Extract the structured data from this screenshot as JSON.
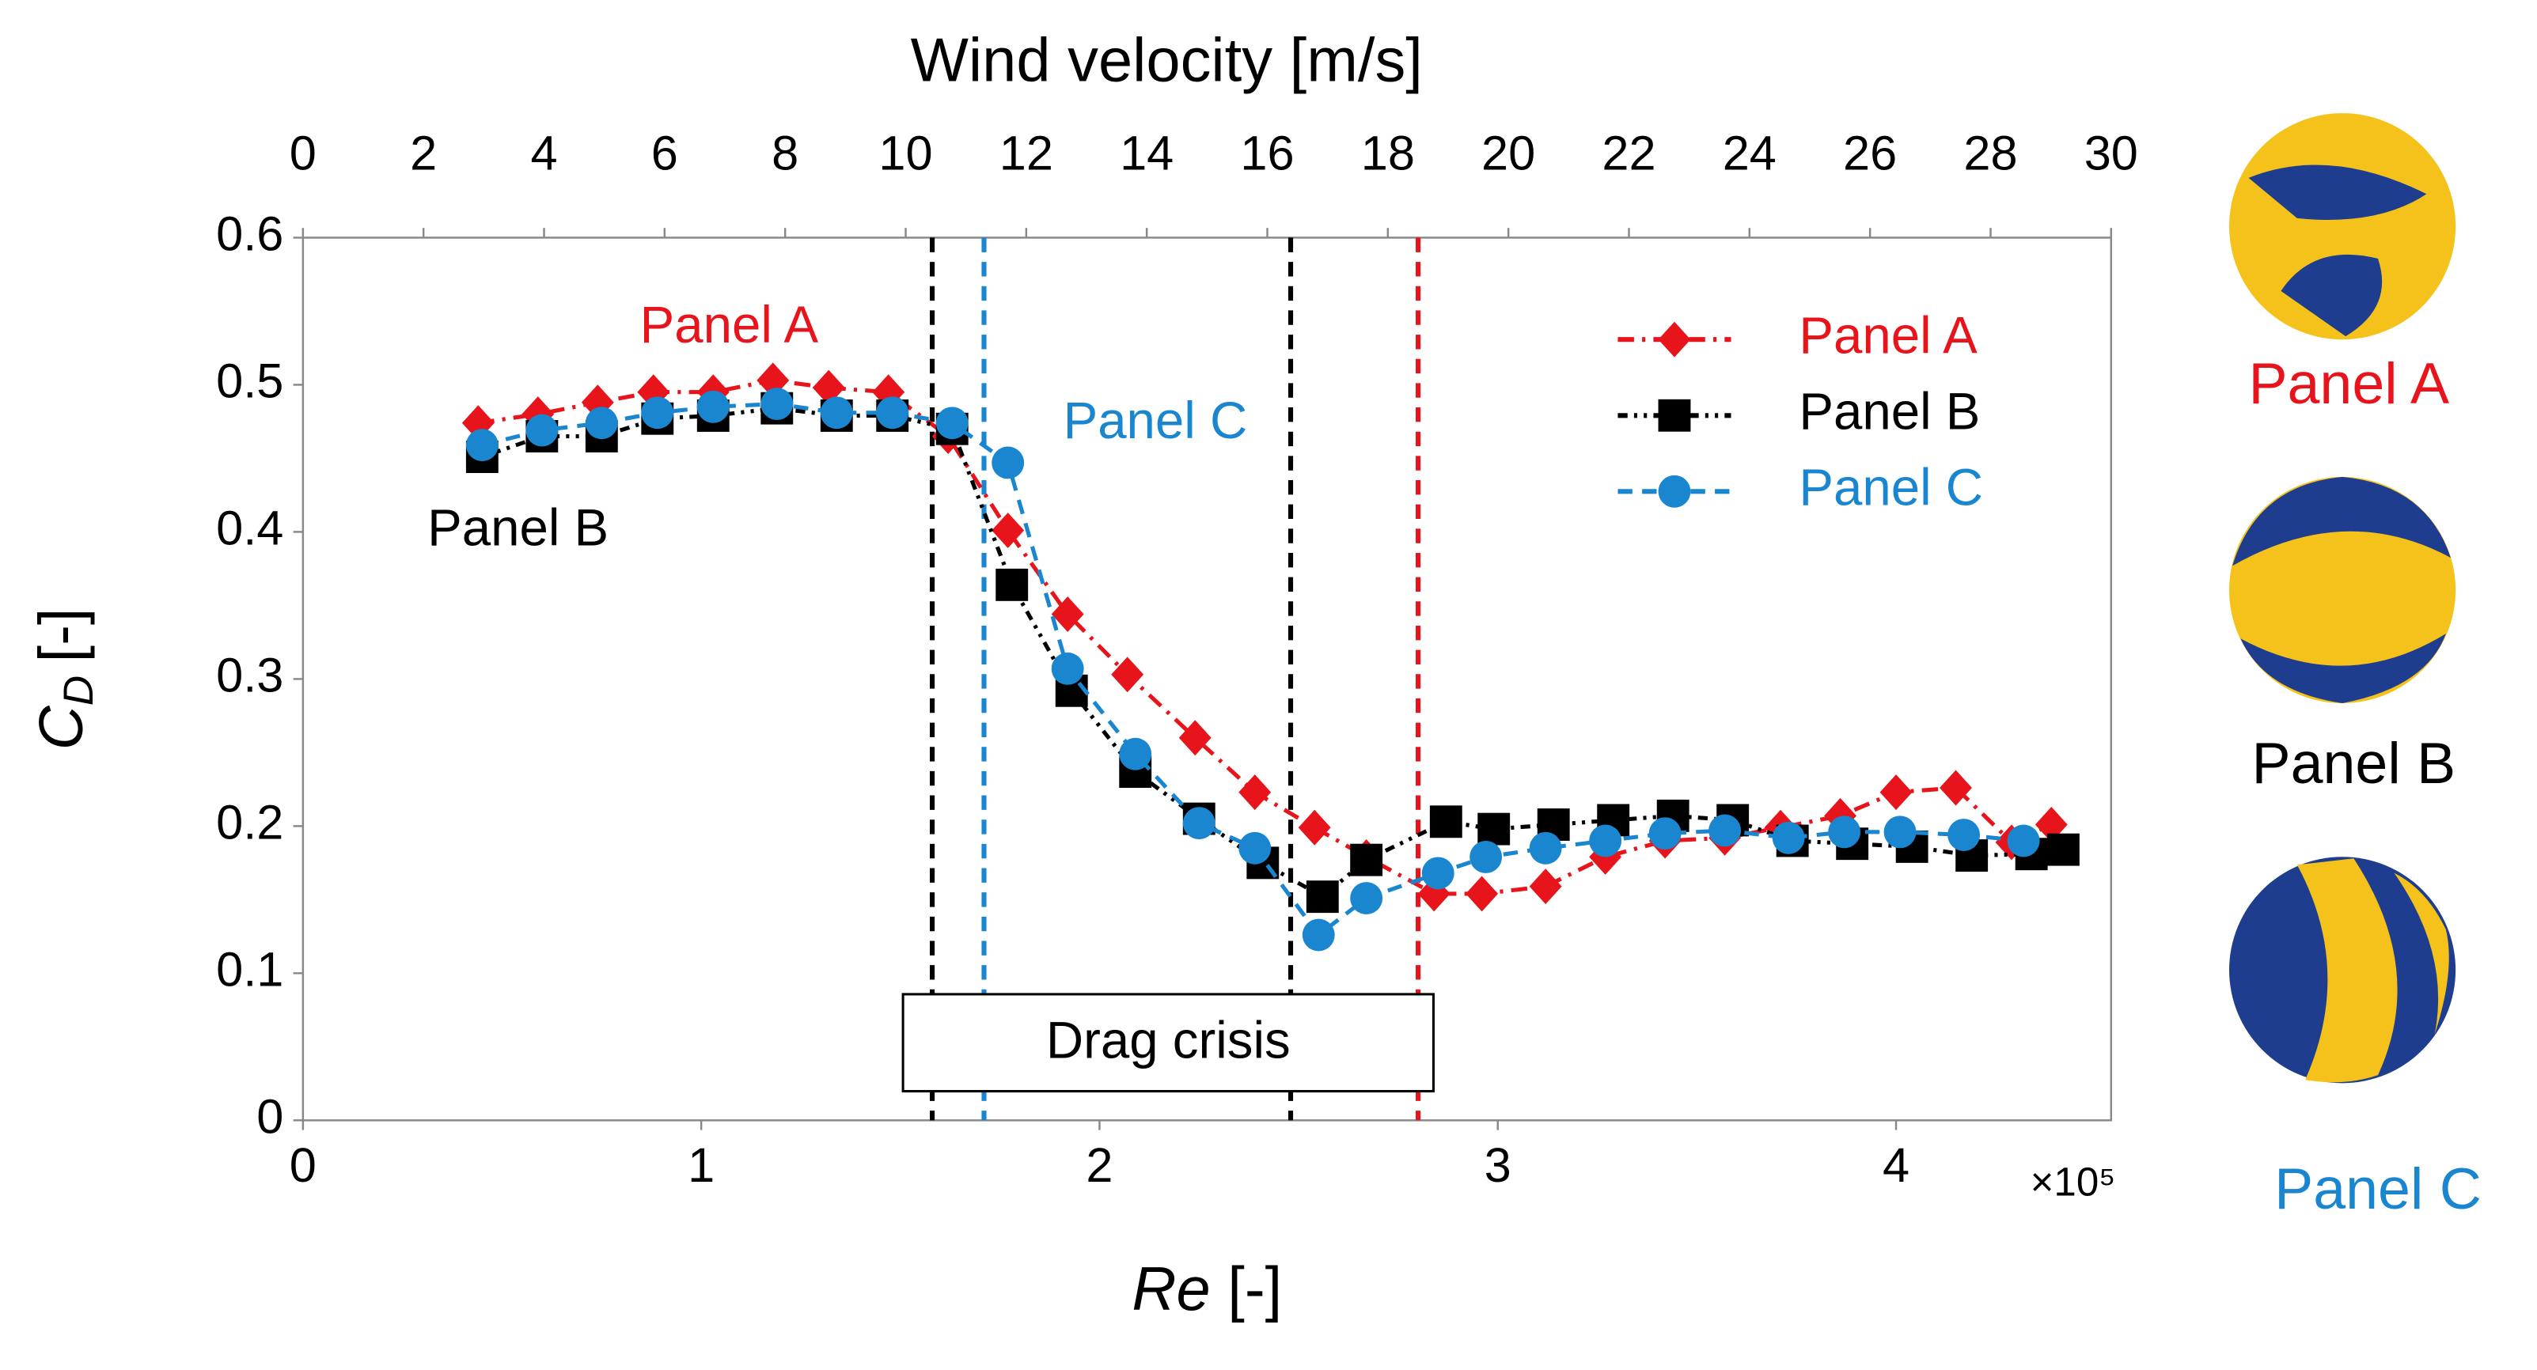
{
  "chart_data": {
    "type": "line",
    "top_axis_label": "Wind velocity [m/s]",
    "x_label": {
      "symbol": "Re",
      "unit": "[-]"
    },
    "y_label": {
      "symbol": "C",
      "subscript": "D",
      "unit": "[-]"
    },
    "x_multiplier_label": "×10⁵",
    "xlim": [
      0,
      4.54
    ],
    "xticks": [
      0,
      1,
      2,
      3,
      4
    ],
    "x2lim": [
      0,
      30
    ],
    "x2ticks": [
      0,
      2,
      4,
      6,
      8,
      10,
      12,
      14,
      16,
      18,
      20,
      22,
      24,
      26,
      28,
      30
    ],
    "ylim": [
      0,
      0.6
    ],
    "yticks": [
      0,
      0.1,
      0.2,
      0.3,
      0.4,
      0.5,
      0.6
    ],
    "legend": "upper right",
    "series": [
      {
        "name": "Panel A",
        "color": "#e8141b",
        "marker": "diamond",
        "dash": "dash-dot",
        "x": [
          0.44,
          0.59,
          0.74,
          0.88,
          1.03,
          1.18,
          1.32,
          1.47,
          1.62,
          1.77,
          1.92,
          2.07,
          2.24,
          2.39,
          2.54,
          2.67,
          2.84,
          2.96,
          3.12,
          3.27,
          3.42,
          3.57,
          3.71,
          3.86,
          4.0,
          4.15,
          4.29,
          4.39
        ],
        "values": [
          0.474,
          0.48,
          0.488,
          0.495,
          0.495,
          0.503,
          0.498,
          0.495,
          0.465,
          0.401,
          0.344,
          0.303,
          0.26,
          0.223,
          0.199,
          0.179,
          0.154,
          0.154,
          0.159,
          0.179,
          0.19,
          0.192,
          0.199,
          0.207,
          0.223,
          0.226,
          0.189,
          0.201
        ]
      },
      {
        "name": "Panel B",
        "color": "#000000",
        "marker": "square",
        "dash": "dash-dot-dot",
        "x": [
          0.45,
          0.6,
          0.75,
          0.89,
          1.03,
          1.19,
          1.34,
          1.48,
          1.63,
          1.78,
          1.93,
          2.09,
          2.25,
          2.41,
          2.56,
          2.67,
          2.87,
          2.99,
          3.14,
          3.29,
          3.44,
          3.59,
          3.74,
          3.89,
          4.04,
          4.19,
          4.34,
          4.42
        ],
        "values": [
          0.451,
          0.465,
          0.465,
          0.477,
          0.479,
          0.484,
          0.479,
          0.479,
          0.47,
          0.364,
          0.292,
          0.237,
          0.205,
          0.175,
          0.152,
          0.177,
          0.203,
          0.198,
          0.201,
          0.204,
          0.207,
          0.204,
          0.19,
          0.188,
          0.186,
          0.18,
          0.181,
          0.184
        ]
      },
      {
        "name": "Panel C",
        "color": "#1a86d0",
        "marker": "circle",
        "dash": "dashed",
        "x": [
          0.45,
          0.6,
          0.75,
          0.89,
          1.03,
          1.19,
          1.34,
          1.48,
          1.63,
          1.77,
          1.92,
          2.09,
          2.25,
          2.39,
          2.55,
          2.67,
          2.85,
          2.97,
          3.12,
          3.27,
          3.42,
          3.57,
          3.73,
          3.87,
          4.01,
          4.17,
          4.32
        ],
        "values": [
          0.459,
          0.469,
          0.474,
          0.481,
          0.485,
          0.487,
          0.481,
          0.481,
          0.474,
          0.447,
          0.307,
          0.249,
          0.202,
          0.185,
          0.126,
          0.151,
          0.168,
          0.179,
          0.185,
          0.19,
          0.195,
          0.197,
          0.192,
          0.196,
          0.196,
          0.194,
          0.19
        ]
      }
    ],
    "reference_lines": [
      {
        "x": 1.58,
        "color": "#000000"
      },
      {
        "x": 1.71,
        "color": "#1a86d0"
      },
      {
        "x": 2.48,
        "color": "#000000"
      },
      {
        "x": 2.8,
        "color": "#e8141b"
      }
    ],
    "annotations": [
      {
        "text": "Panel A",
        "color": "#e8141b",
        "x": 1.07,
        "y": 0.538
      },
      {
        "text": "Panel B",
        "color": "#000000",
        "x": 0.54,
        "y": 0.4
      },
      {
        "text": "Panel C",
        "color": "#1a86d0",
        "x": 2.14,
        "y": 0.473
      }
    ],
    "region_label": "Drag crisis",
    "side_labels": [
      "Panel A",
      "Panel B",
      "Panel C"
    ]
  }
}
